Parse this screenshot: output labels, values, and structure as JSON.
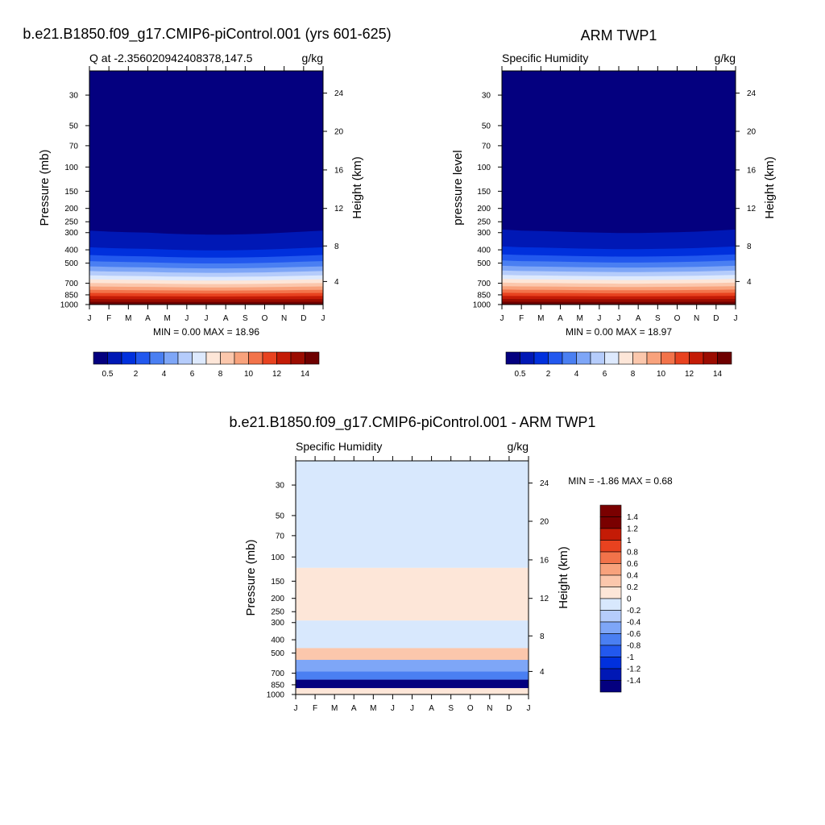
{
  "titles": {
    "top_left": "b.e21.B1850.f09_g17.CMIP6-piControl.001 (yrs 601-625)",
    "top_right": "ARM TWP1",
    "bottom": "b.e21.B1850.f09_g17.CMIP6-piControl.001 - ARM TWP1"
  },
  "colors": {
    "q_scale": [
      "#04007f",
      "#0018b5",
      "#0030dd",
      "#2258ee",
      "#4a7ff2",
      "#7ea6f7",
      "#b5ccfb",
      "#dde9fd",
      "#fde6d8",
      "#fbc7ac",
      "#f8a27c",
      "#f2734a",
      "#e8421f",
      "#c41b06",
      "#9b0c01",
      "#6e0000"
    ],
    "diff_scale": [
      "#04007f",
      "#0018b5",
      "#0030dd",
      "#2258ee",
      "#4a7ff2",
      "#7ea6f7",
      "#b5ccfb",
      "#d8e8fd",
      "#fde6d8",
      "#fbc7ac",
      "#f8a27c",
      "#f2734a",
      "#e8421f",
      "#c41b06",
      "#7a0000"
    ]
  },
  "chart_data": [
    {
      "type": "heatmap",
      "title": "b.e21.B1850.f09_g17.CMIP6-piControl.001 (yrs 601-625)",
      "subtitle_left": "Q at -2.356020942408378,147.5",
      "subtitle_right": "g/kg",
      "ylabel": "Pressure (mb)",
      "ylabel_right": "Height (km)",
      "x_ticks": [
        "J",
        "F",
        "M",
        "A",
        "M",
        "J",
        "J",
        "A",
        "S",
        "O",
        "N",
        "D",
        "J"
      ],
      "y_ticks": [
        "30",
        "50",
        "70",
        "100",
        "150",
        "200",
        "250",
        "300",
        "400",
        "500",
        "700",
        "850",
        "1000"
      ],
      "y_tick_values": [
        30,
        50,
        70,
        100,
        150,
        200,
        250,
        300,
        400,
        500,
        700,
        850,
        1000
      ],
      "ylim": [
        20,
        1000
      ],
      "y_scale": "log",
      "height_ticks": [
        "24",
        "20",
        "16",
        "12",
        "8",
        "4"
      ],
      "height_tick_pressures": [
        29,
        55,
        105,
        200,
        375,
        680
      ],
      "moist_top_pressure": [
        290,
        295,
        298,
        300,
        305,
        308,
        310,
        310,
        308,
        305,
        300,
        295,
        290
      ],
      "stats": "MIN =   0.00 MAX =  18.96",
      "colorbar_labels": [
        "0.5",
        "2",
        "4",
        "6",
        "8",
        "10",
        "12",
        "14"
      ]
    },
    {
      "type": "heatmap",
      "title": "ARM TWP1",
      "subtitle_left": "Specific Humidity",
      "subtitle_right": "g/kg",
      "ylabel": "pressure level",
      "ylabel_right": "Height (km)",
      "x_ticks": [
        "J",
        "F",
        "M",
        "A",
        "M",
        "J",
        "J",
        "A",
        "S",
        "O",
        "N",
        "D",
        "J"
      ],
      "y_ticks": [
        "30",
        "50",
        "70",
        "100",
        "150",
        "200",
        "250",
        "300",
        "400",
        "500",
        "700",
        "850",
        "1000"
      ],
      "y_tick_values": [
        30,
        50,
        70,
        100,
        150,
        200,
        250,
        300,
        400,
        500,
        700,
        850,
        1000
      ],
      "ylim": [
        20,
        1000
      ],
      "y_scale": "log",
      "height_ticks": [
        "24",
        "20",
        "16",
        "12",
        "8",
        "4"
      ],
      "height_tick_pressures": [
        29,
        55,
        105,
        200,
        375,
        680
      ],
      "moist_top_pressure": [
        285,
        290,
        292,
        295,
        298,
        300,
        302,
        302,
        300,
        298,
        295,
        290,
        285
      ],
      "stats": "MIN =   0.00 MAX =  18.97",
      "colorbar_labels": [
        "0.5",
        "2",
        "4",
        "6",
        "8",
        "10",
        "12",
        "14"
      ]
    },
    {
      "type": "heatmap",
      "title": "b.e21.B1850.f09_g17.CMIP6-piControl.001 - ARM TWP1",
      "subtitle_left": "Specific Humidity",
      "subtitle_right": "g/kg",
      "ylabel": "Pressure (mb)",
      "ylabel_right": "Height (km)",
      "x_ticks": [
        "J",
        "F",
        "M",
        "A",
        "M",
        "J",
        "J",
        "A",
        "S",
        "O",
        "N",
        "D",
        "J"
      ],
      "y_ticks": [
        "30",
        "50",
        "70",
        "100",
        "150",
        "200",
        "250",
        "300",
        "400",
        "500",
        "700",
        "850",
        "1000"
      ],
      "y_tick_values": [
        30,
        50,
        70,
        100,
        150,
        200,
        250,
        300,
        400,
        500,
        700,
        850,
        1000
      ],
      "ylim": [
        20,
        1000
      ],
      "y_scale": "log",
      "height_ticks": [
        "24",
        "20",
        "16",
        "12",
        "8",
        "4"
      ],
      "height_tick_pressures": [
        29,
        55,
        105,
        200,
        375,
        680
      ],
      "stats": "MIN =  -1.86 MAX =   0.68",
      "colorbar_labels": [
        "1.4",
        "1.2",
        "1",
        "0.8",
        "0.6",
        "0.4",
        "0.2",
        "0",
        "-0.2",
        "-0.4",
        "-0.6",
        "-0.8",
        "-1",
        "-1.2",
        "-1.4"
      ],
      "layers": [
        {
          "p_top": 20,
          "p_bottom": 120,
          "value": -0.1
        },
        {
          "p_top": 120,
          "p_bottom": 290,
          "value": 0.1
        },
        {
          "p_top": 290,
          "p_bottom": 460,
          "value": -0.1
        },
        {
          "p_top": 460,
          "p_bottom": 560,
          "value": 0.3
        },
        {
          "p_top": 560,
          "p_bottom": 680,
          "value": -0.3
        },
        {
          "p_top": 680,
          "p_bottom": 780,
          "value": -0.7
        },
        {
          "p_top": 780,
          "p_bottom": 900,
          "value": -1.4
        },
        {
          "p_top": 900,
          "p_bottom": 1000,
          "value": 0.1
        }
      ]
    }
  ]
}
